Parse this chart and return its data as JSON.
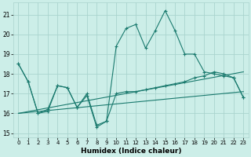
{
  "xlabel": "Humidex (Indice chaleur)",
  "bg_color": "#cceee8",
  "grid_color": "#aad4ce",
  "line_color": "#1a7a6e",
  "xlim": [
    -0.5,
    23.5
  ],
  "ylim": [
    14.8,
    21.6
  ],
  "yticks": [
    15,
    16,
    17,
    18,
    19,
    20,
    21
  ],
  "xticks": [
    0,
    1,
    2,
    3,
    4,
    5,
    6,
    7,
    8,
    9,
    10,
    11,
    12,
    13,
    14,
    15,
    16,
    17,
    18,
    19,
    20,
    21,
    22,
    23
  ],
  "line1_x": [
    0,
    1,
    2,
    3,
    4,
    5,
    6,
    7,
    8,
    9,
    10,
    11,
    12,
    13,
    14,
    15,
    16,
    17,
    18,
    19,
    20,
    21,
    22,
    23
  ],
  "line1_y": [
    18.5,
    17.6,
    16.0,
    16.2,
    17.4,
    17.3,
    16.3,
    17.0,
    15.4,
    15.6,
    19.4,
    20.3,
    20.5,
    19.3,
    20.2,
    21.2,
    20.2,
    19.0,
    19.0,
    18.1,
    18.0,
    17.9,
    17.8,
    16.8
  ],
  "line2_x": [
    0,
    23
  ],
  "line2_y": [
    16.0,
    18.1
  ],
  "line3_x": [
    0,
    23
  ],
  "line3_y": [
    16.0,
    17.1
  ],
  "line4_x": [
    0,
    1,
    2,
    3,
    4,
    5,
    6,
    7,
    8,
    9,
    10,
    11,
    12,
    13,
    14,
    15,
    16,
    17,
    18,
    19,
    20,
    21,
    22,
    23
  ],
  "line4_y": [
    18.5,
    17.6,
    16.0,
    16.1,
    17.4,
    17.3,
    16.3,
    16.9,
    15.3,
    15.6,
    17.0,
    17.1,
    17.1,
    17.2,
    17.3,
    17.4,
    17.5,
    17.6,
    17.8,
    17.9,
    18.1,
    18.0,
    17.8,
    16.8
  ]
}
